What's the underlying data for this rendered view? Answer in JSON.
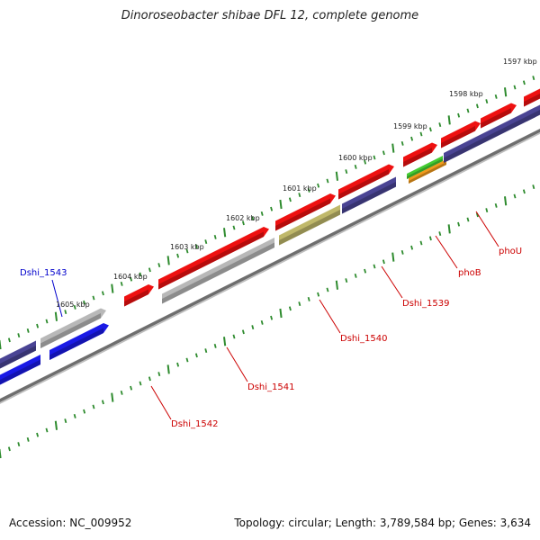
{
  "title": "Dinoroseobacter shibae DFL 12, complete genome",
  "accession": "Accession: NC_009952",
  "topology": "Topology: circular; Length: 3,789,584 bp; Genes: 3,634",
  "colors": {
    "backbone": "#8c8c8c",
    "tick": "#2e8b2e",
    "cds_red": "#ee1111",
    "cds_purple": "#4a4494",
    "cds_gray": "#b8b8b8",
    "cds_blue": "#1a1ae6",
    "cds_olive": "#bfb86a",
    "cds_green": "#44cc33",
    "cds_orange": "#f09a1c",
    "label_red": "#cc0000",
    "label_blue": "#0000cc"
  },
  "kbp_labels": [
    "1597 kbp",
    "1598 kbp",
    "1599 kbp",
    "1600 kbp",
    "1601 kbp",
    "1602 kbp",
    "1603 kbp",
    "1604 kbp",
    "1605 kbp"
  ],
  "gene_labels": [
    {
      "text": "Dshi_1543",
      "color": "blue"
    },
    {
      "text": "Dshi_1542",
      "color": "red"
    },
    {
      "text": "Dshi_1541",
      "color": "red"
    },
    {
      "text": "Dshi_1540",
      "color": "red"
    },
    {
      "text": "Dshi_1539",
      "color": "red"
    },
    {
      "text": "phoB",
      "color": "red"
    },
    {
      "text": "phoU",
      "color": "red"
    }
  ]
}
